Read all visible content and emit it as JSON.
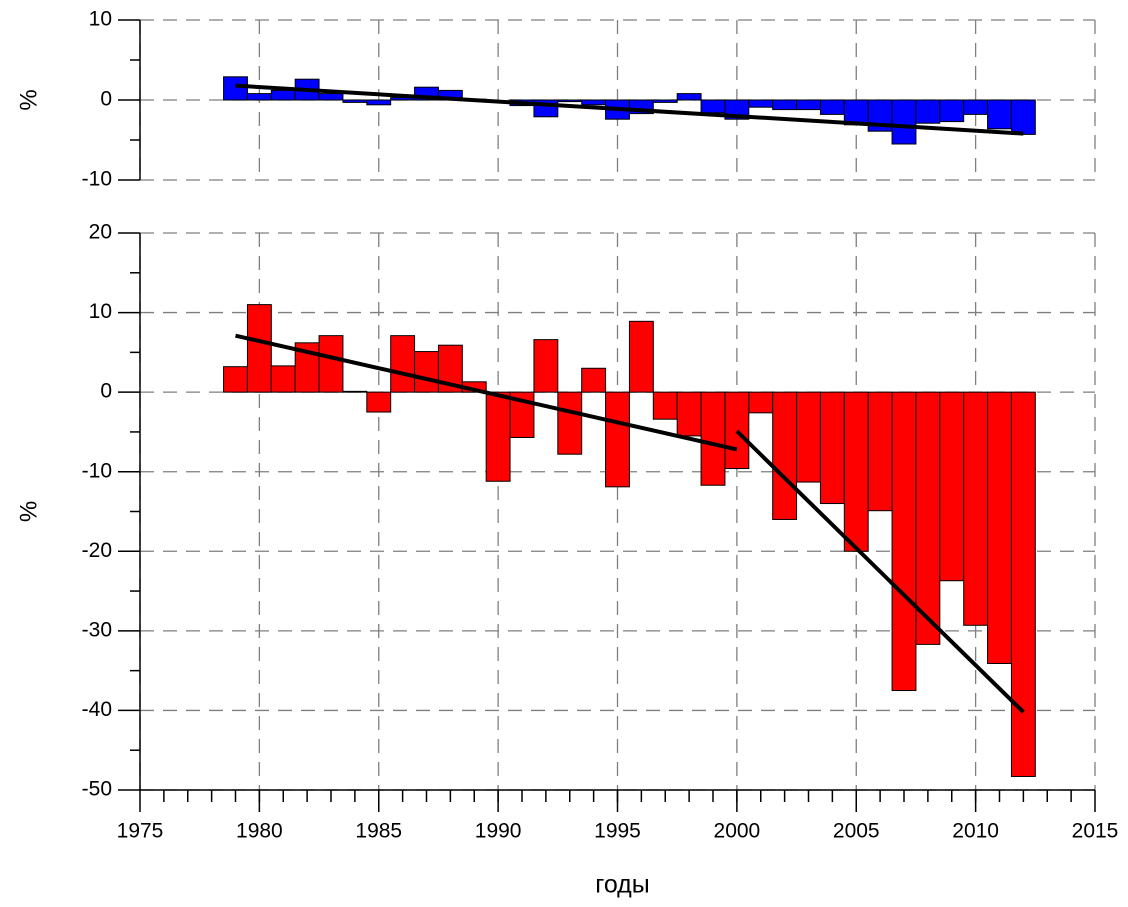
{
  "chart_data": [
    {
      "type": "bar",
      "y_label": "%",
      "color": "#0000ff",
      "x": [
        1979,
        1980,
        1981,
        1982,
        1983,
        1984,
        1985,
        1986,
        1987,
        1988,
        1989,
        1990,
        1991,
        1992,
        1993,
        1994,
        1995,
        1996,
        1997,
        1998,
        1999,
        2000,
        2001,
        2002,
        2003,
        2004,
        2005,
        2006,
        2007,
        2008,
        2009,
        2010,
        2011,
        2012
      ],
      "values": [
        2.9,
        0.8,
        1.2,
        2.6,
        0.8,
        -0.3,
        -0.6,
        0.3,
        1.6,
        1.2,
        0.1,
        0,
        -0.7,
        -2.1,
        -0.2,
        -0.6,
        -2.4,
        -1.7,
        -0.3,
        0.8,
        -1.6,
        -2.4,
        -0.9,
        -1.2,
        -1.2,
        -1.8,
        -3.1,
        -3.9,
        -5.5,
        -2.9,
        -2.7,
        -1.8,
        -3.6,
        -4.3
      ],
      "trend_lines": [
        {
          "color": "#000000",
          "x": [
            1979,
            2012
          ],
          "values": [
            1.8,
            -4.2
          ]
        }
      ],
      "xlim": [
        1975,
        2015
      ],
      "xticks": [
        1975,
        1980,
        1985,
        1990,
        1995,
        2000,
        2005,
        2010,
        2015
      ],
      "ylim": [
        -10,
        10
      ],
      "yticks": [
        -10,
        0,
        10
      ],
      "grid": true
    },
    {
      "type": "bar",
      "y_label": "%",
      "x_label": "годы",
      "color": "#ff0000",
      "x": [
        1979,
        1980,
        1981,
        1982,
        1983,
        1984,
        1985,
        1986,
        1987,
        1988,
        1989,
        1990,
        1991,
        1992,
        1993,
        1994,
        1995,
        1996,
        1997,
        1998,
        1999,
        2000,
        2001,
        2002,
        2003,
        2004,
        2005,
        2006,
        2007,
        2008,
        2009,
        2010,
        2011,
        2012
      ],
      "values": [
        3.2,
        11,
        3.3,
        6.2,
        7.1,
        0.1,
        -2.5,
        7.1,
        5.1,
        5.9,
        1.3,
        -11.2,
        -5.7,
        6.6,
        -7.8,
        3.0,
        -11.9,
        8.9,
        -3.4,
        -5.5,
        -11.7,
        -9.6,
        -2.6,
        -16,
        -11.3,
        -14,
        -20,
        -14.9,
        -37.5,
        -31.7,
        -23.7,
        -29.3,
        -34.1,
        -48.3
      ],
      "trend_lines": [
        {
          "color": "#000000",
          "x": [
            1979,
            2000
          ],
          "values": [
            7.1,
            -7.2
          ]
        },
        {
          "color": "#000000",
          "x": [
            2000,
            2012
          ],
          "values": [
            -4.9,
            -40.2
          ]
        }
      ],
      "xlim": [
        1975,
        2015
      ],
      "xticks": [
        1975,
        1980,
        1985,
        1990,
        1995,
        2000,
        2005,
        2010,
        2015
      ],
      "ylim": [
        -50,
        20
      ],
      "yticks": [
        -50,
        -40,
        -30,
        -20,
        -10,
        0,
        10,
        20
      ],
      "grid": true
    }
  ]
}
